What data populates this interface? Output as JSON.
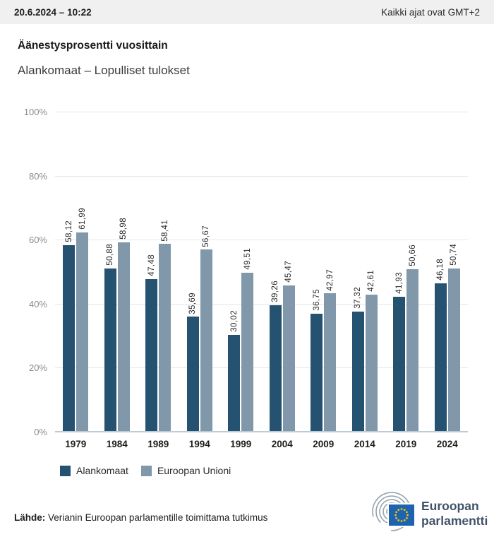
{
  "header": {
    "datetime": "20.6.2024 – 10:22",
    "timezone_note": "Kaikki ajat ovat GMT+2"
  },
  "title": "Äänestysprosentti vuosittain",
  "subtitle": "Alankomaat – Lopulliset tulokset",
  "chart_data": {
    "type": "bar",
    "title": "Äänestysprosentti vuosittain",
    "subtitle": "Alankomaat – Lopulliset tulokset",
    "categories": [
      "1979",
      "1984",
      "1989",
      "1994",
      "1999",
      "2004",
      "2009",
      "2014",
      "2019",
      "2024"
    ],
    "series": [
      {
        "name": "Alankomaat",
        "color": "#255271",
        "values": [
          58.12,
          50.88,
          47.48,
          35.69,
          30.02,
          39.26,
          36.75,
          37.32,
          41.93,
          46.18
        ],
        "value_labels": [
          "58,12",
          "50,88",
          "47,48",
          "35,69",
          "30,02",
          "39,26",
          "36,75",
          "37,32",
          "41,93",
          "46,18"
        ]
      },
      {
        "name": "Euroopan Unioni",
        "color": "#8098aa",
        "values": [
          61.99,
          58.98,
          58.41,
          56.67,
          49.51,
          45.47,
          42.97,
          42.61,
          50.66,
          50.74
        ],
        "value_labels": [
          "61,99",
          "58,98",
          "58,41",
          "56,67",
          "49,51",
          "45,47",
          "42,97",
          "42,61",
          "50,66",
          "50,74"
        ]
      }
    ],
    "y_ticks": [
      0,
      20,
      40,
      60,
      80,
      100
    ],
    "y_tick_labels": [
      "0%",
      "20%",
      "40%",
      "60%",
      "80%",
      "100%"
    ],
    "ylim": [
      0,
      100
    ],
    "grid": true,
    "legend_position": "bottom"
  },
  "footer": {
    "source_label": "Lähde:",
    "source_text": "Verianin Euroopan parlamentille toimittama tutkimus",
    "logo": {
      "name": "european-parliament-logo",
      "line1": "Euroopan",
      "line2": "parlamentti"
    }
  },
  "colors": {
    "series_dark": "#255271",
    "series_light": "#8098aa",
    "axis_line": "#b9ccd8",
    "gridline": "#e6e6e6",
    "topbar_bg": "#f0f0f0",
    "eu_flag_blue": "#1e63b0",
    "star_yellow": "#f3c500",
    "logo_text": "#42526b"
  }
}
